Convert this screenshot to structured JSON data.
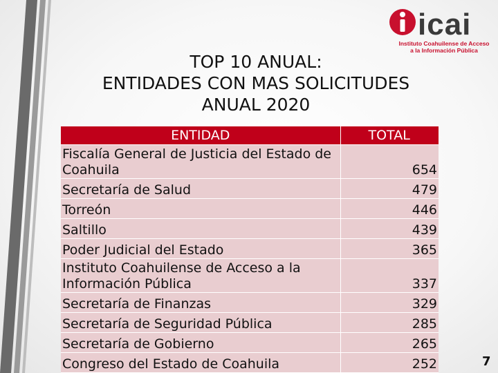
{
  "title": {
    "line1": "TOP 10 ANUAL:",
    "line2": "ENTIDADES CON MAS SOLICITUDES",
    "line3": "ANUAL 2020"
  },
  "logo": {
    "word": "icai",
    "line1": "Instituto Coahuilense de Acceso",
    "line2": "a la Información Pública"
  },
  "table": {
    "headers": [
      "ENTIDAD",
      "TOTAL"
    ],
    "rows": [
      {
        "entity": "Fiscalía General de Justicia del Estado de Coahuila",
        "total": "654"
      },
      {
        "entity": "Secretaría de Salud",
        "total": "479"
      },
      {
        "entity": "Torreón",
        "total": "446"
      },
      {
        "entity": "Saltillo",
        "total": "439"
      },
      {
        "entity": "Poder Judicial del Estado",
        "total": "365"
      },
      {
        "entity": "Instituto Coahuilense de Acceso a la Información Pública",
        "total": "337"
      },
      {
        "entity": "Secretaría de Finanzas",
        "total": "329"
      },
      {
        "entity": "Secretaría de Seguridad Pública",
        "total": "285"
      },
      {
        "entity": "Secretaría de Gobierno",
        "total": "265"
      },
      {
        "entity": "Congreso del Estado de Coahuila",
        "total": "252"
      }
    ]
  },
  "page_number": "7",
  "colors": {
    "header_bg": "#c0001a",
    "row_bg": "#e9cdd0",
    "logo_red": "#c8102e"
  }
}
